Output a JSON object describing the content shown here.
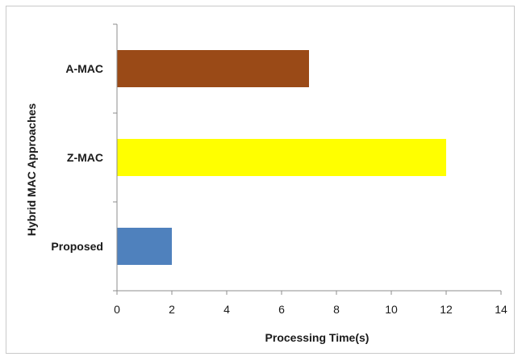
{
  "chart_data": {
    "type": "bar",
    "orientation": "horizontal",
    "categories": [
      "A-MAC",
      "Z-MAC",
      "Proposed"
    ],
    "values": [
      7,
      12,
      2
    ],
    "colors": [
      "#9a4a17",
      "#ffff00",
      "#4f81bd"
    ],
    "xlabel": "Processing Time(s)",
    "ylabel": "Hybrid MAC Approaches",
    "xlim": [
      0,
      14
    ],
    "xticks": [
      0,
      2,
      4,
      6,
      8,
      10,
      12,
      14
    ],
    "grid": false,
    "legend": "none"
  }
}
